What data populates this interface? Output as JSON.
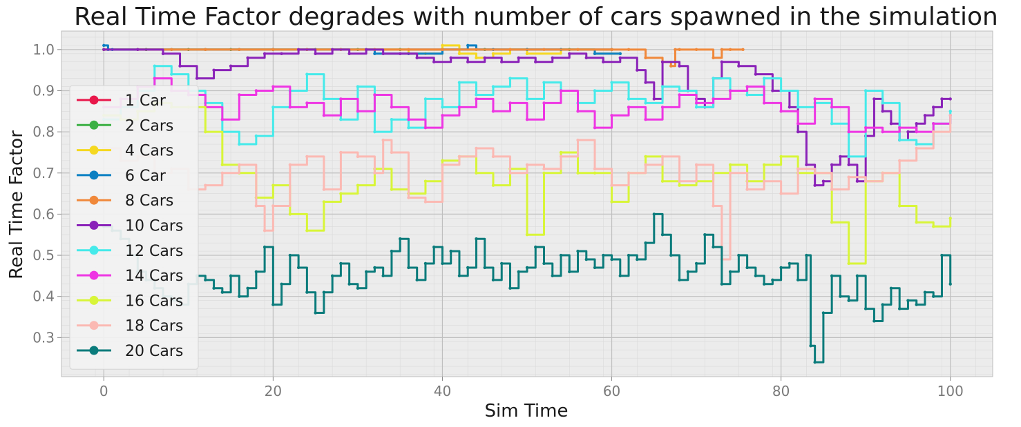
{
  "chart_data": {
    "type": "line",
    "title": "Real Time Factor degrades with number of cars spawned in the simulation",
    "xlabel": "Sim Time",
    "ylabel": "Real Time Factor",
    "xlim": [
      -5,
      105
    ],
    "ylim": [
      0.205,
      1.045
    ],
    "xticks": [
      0,
      20,
      40,
      60,
      80,
      100
    ],
    "xtick_labels": [
      "0",
      "20",
      "40",
      "60",
      "80",
      "100"
    ],
    "yticks": [
      0.3,
      0.4,
      0.5,
      0.6,
      0.7,
      0.8,
      0.9,
      1.0
    ],
    "ytick_labels": [
      "0.3",
      "0.4",
      "0.5",
      "0.6",
      "0.7",
      "0.8",
      "0.9",
      "1.0"
    ],
    "grid": true,
    "legend_position": "center-left",
    "series": [
      {
        "name": "1 Car",
        "color": "#e8174a",
        "x": [
          0,
          5,
          10,
          15,
          20,
          25,
          30,
          35,
          40,
          45,
          50,
          55,
          60
        ],
        "y": [
          1.0,
          1.0,
          1.0,
          1.0,
          1.0,
          1.0,
          1.0,
          1.0,
          1.0,
          1.0,
          1.0,
          1.0,
          1.0
        ]
      },
      {
        "name": "2 Cars",
        "color": "#3cb044",
        "x": [
          0,
          5,
          10,
          15,
          20,
          25,
          30,
          35,
          40,
          45,
          50,
          55,
          60
        ],
        "y": [
          1.0,
          1.0,
          1.0,
          1.0,
          1.0,
          1.0,
          1.0,
          1.0,
          1.0,
          1.0,
          1.0,
          1.0,
          1.0
        ]
      },
      {
        "name": "4 Cars",
        "color": "#f5d820",
        "x": [
          0,
          4,
          8,
          12,
          16,
          20,
          24,
          28,
          32,
          36,
          38,
          40,
          42,
          44,
          46,
          48,
          50,
          54,
          58,
          61
        ],
        "y": [
          1.0,
          1.0,
          1.0,
          1.0,
          1.0,
          1.0,
          1.0,
          1.0,
          1.0,
          0.99,
          0.99,
          1.01,
          0.99,
          0.98,
          0.99,
          1.0,
          0.99,
          1.0,
          0.99,
          0.99
        ]
      },
      {
        "name": "6 Car",
        "color": "#0a7fc2",
        "x": [
          0,
          0.5,
          1,
          4,
          8,
          12,
          16,
          20,
          24,
          28,
          32,
          36,
          40,
          43,
          44,
          46,
          50,
          54,
          58,
          61
        ],
        "y": [
          1.01,
          1.0,
          1.0,
          1.0,
          1.0,
          1.0,
          1.0,
          1.0,
          1.0,
          1.0,
          0.99,
          0.99,
          1.0,
          1.01,
          1.0,
          1.0,
          1.0,
          1.0,
          0.99,
          0.99
        ]
      },
      {
        "name": "8 Cars",
        "color": "#f0883a",
        "x": [
          4,
          8,
          12,
          16,
          20,
          24,
          28,
          32,
          36,
          40,
          44,
          48,
          52,
          56,
          60,
          62,
          64,
          66,
          67,
          67.5,
          68,
          70,
          72,
          73,
          74,
          75.5
        ],
        "y": [
          1.0,
          1.0,
          1.0,
          1.0,
          1.0,
          1.0,
          1.0,
          1.0,
          1.0,
          1.0,
          1.0,
          1.0,
          1.0,
          1.0,
          1.0,
          1.0,
          0.98,
          0.97,
          0.96,
          1.0,
          1.0,
          1.0,
          0.98,
          1.0,
          1.0,
          1.0
        ]
      },
      {
        "name": "10 Cars",
        "color": "#8a22b8",
        "x": [
          0,
          4,
          7,
          9,
          11,
          13,
          15,
          17,
          19,
          21,
          23,
          25,
          27,
          29,
          31,
          33,
          35,
          37,
          39,
          41,
          43,
          45,
          47,
          49,
          51,
          53,
          55,
          57,
          59,
          61,
          63,
          64,
          65,
          66,
          68,
          69,
          70,
          71,
          72,
          73,
          75,
          77,
          79,
          81,
          82,
          83,
          84,
          85,
          86,
          87,
          88,
          89,
          90,
          91,
          92,
          93,
          94,
          95,
          96,
          97,
          98,
          99,
          100
        ],
        "y": [
          1.0,
          1.0,
          0.99,
          0.96,
          0.93,
          0.95,
          0.96,
          0.98,
          0.99,
          0.99,
          1.0,
          0.99,
          1.0,
          0.99,
          1.0,
          0.99,
          0.99,
          0.98,
          0.97,
          0.98,
          0.97,
          0.98,
          0.97,
          0.98,
          0.97,
          0.98,
          0.99,
          0.98,
          0.97,
          0.98,
          0.95,
          0.92,
          0.88,
          0.97,
          0.96,
          0.9,
          0.88,
          0.86,
          0.93,
          0.97,
          0.96,
          0.94,
          0.9,
          0.86,
          0.8,
          0.72,
          0.67,
          0.68,
          0.72,
          0.74,
          0.72,
          0.68,
          0.79,
          0.88,
          0.85,
          0.82,
          0.78,
          0.8,
          0.82,
          0.84,
          0.86,
          0.88,
          0.88
        ]
      },
      {
        "name": "12 Cars",
        "color": "#45eaea",
        "x": [
          0,
          2,
          4,
          6,
          8,
          10,
          12,
          14,
          16,
          18,
          20,
          22,
          24,
          26,
          28,
          30,
          32,
          34,
          36,
          38,
          40,
          42,
          44,
          46,
          48,
          50,
          52,
          54,
          56,
          58,
          60,
          62,
          64,
          66,
          68,
          70,
          72,
          74,
          76,
          78,
          80,
          82,
          84,
          86,
          88,
          90,
          92,
          94,
          96,
          98,
          100
        ],
        "y": [
          0.83,
          0.86,
          0.9,
          0.96,
          0.94,
          0.9,
          0.87,
          0.8,
          0.77,
          0.79,
          0.86,
          0.9,
          0.94,
          0.88,
          0.83,
          0.91,
          0.8,
          0.83,
          0.81,
          0.88,
          0.86,
          0.92,
          0.89,
          0.91,
          0.93,
          0.88,
          0.92,
          0.9,
          0.87,
          0.9,
          0.92,
          0.88,
          0.87,
          0.91,
          0.9,
          0.86,
          0.93,
          0.9,
          0.89,
          0.93,
          0.9,
          0.86,
          0.87,
          0.82,
          0.74,
          0.9,
          0.87,
          0.78,
          0.77,
          0.82,
          0.85
        ]
      },
      {
        "name": "14 Cars",
        "color": "#ee35e3",
        "x": [
          0,
          2,
          4,
          6,
          8,
          10,
          12,
          14,
          16,
          18,
          20,
          22,
          24,
          26,
          28,
          30,
          32,
          34,
          36,
          38,
          40,
          42,
          44,
          46,
          48,
          50,
          52,
          54,
          56,
          58,
          60,
          62,
          64,
          66,
          68,
          70,
          72,
          74,
          76,
          78,
          80,
          82,
          84,
          86,
          88,
          90,
          92,
          94,
          96,
          98,
          100
        ],
        "y": [
          0.86,
          0.88,
          0.91,
          0.93,
          0.9,
          0.89,
          0.86,
          0.83,
          0.89,
          0.9,
          0.91,
          0.86,
          0.87,
          0.84,
          0.88,
          0.85,
          0.89,
          0.86,
          0.83,
          0.81,
          0.84,
          0.86,
          0.88,
          0.85,
          0.87,
          0.83,
          0.87,
          0.9,
          0.85,
          0.81,
          0.84,
          0.86,
          0.83,
          0.86,
          0.89,
          0.87,
          0.88,
          0.9,
          0.91,
          0.87,
          0.85,
          0.82,
          0.88,
          0.86,
          0.8,
          0.81,
          0.8,
          0.81,
          0.8,
          0.82,
          0.84
        ]
      },
      {
        "name": "16 Cars",
        "color": "#d8f538",
        "x": [
          0,
          2,
          4,
          6,
          8,
          10,
          12,
          14,
          16,
          18,
          20,
          22,
          24,
          26,
          28,
          30,
          32,
          34,
          36,
          38,
          40,
          42,
          44,
          46,
          48,
          50,
          52,
          54,
          56,
          58,
          60,
          62,
          64,
          66,
          68,
          70,
          72,
          74,
          76,
          78,
          80,
          82,
          84,
          86,
          88,
          90,
          92,
          94,
          96,
          98,
          100
        ],
        "y": [
          0.84,
          0.83,
          0.85,
          0.87,
          0.86,
          0.86,
          0.8,
          0.72,
          0.7,
          0.64,
          0.67,
          0.6,
          0.56,
          0.63,
          0.65,
          0.67,
          0.71,
          0.66,
          0.65,
          0.68,
          0.73,
          0.74,
          0.7,
          0.67,
          0.71,
          0.55,
          0.7,
          0.75,
          0.7,
          0.7,
          0.63,
          0.7,
          0.74,
          0.68,
          0.67,
          0.68,
          0.7,
          0.72,
          0.68,
          0.72,
          0.74,
          0.7,
          0.7,
          0.58,
          0.48,
          0.68,
          0.7,
          0.62,
          0.58,
          0.57,
          0.59
        ]
      },
      {
        "name": "18 Cars",
        "color": "#fbb9b3",
        "x": [
          0,
          2,
          4,
          6,
          8,
          10,
          12,
          14,
          16,
          18,
          19,
          20,
          22,
          24,
          26,
          28,
          30,
          32,
          33,
          34,
          36,
          38,
          40,
          42,
          44,
          46,
          48,
          50,
          52,
          54,
          56,
          58,
          60,
          62,
          64,
          66,
          68,
          70,
          72,
          73,
          74,
          76,
          78,
          80,
          82,
          84,
          86,
          88,
          90,
          92,
          94,
          96,
          98,
          100
        ],
        "y": [
          0.76,
          0.73,
          0.74,
          0.7,
          0.71,
          0.66,
          0.67,
          0.7,
          0.72,
          0.62,
          0.56,
          0.62,
          0.72,
          0.74,
          0.66,
          0.75,
          0.74,
          0.7,
          0.78,
          0.75,
          0.64,
          0.63,
          0.72,
          0.74,
          0.76,
          0.74,
          0.7,
          0.72,
          0.71,
          0.74,
          0.78,
          0.71,
          0.67,
          0.7,
          0.72,
          0.74,
          0.68,
          0.72,
          0.62,
          0.49,
          0.7,
          0.66,
          0.68,
          0.65,
          0.71,
          0.7,
          0.66,
          0.69,
          0.68,
          0.7,
          0.73,
          0.76,
          0.8,
          0.84
        ]
      },
      {
        "name": "20 Cars",
        "color": "#0a7b7b",
        "x": [
          0,
          1,
          2,
          3,
          4,
          5,
          6,
          7,
          8,
          9,
          10,
          11,
          12,
          13,
          14,
          15,
          16,
          17,
          18,
          19,
          20,
          21,
          22,
          23,
          24,
          25,
          26,
          27,
          28,
          29,
          30,
          31,
          32,
          33,
          34,
          35,
          36,
          37,
          38,
          39,
          40,
          41,
          42,
          43,
          44,
          45,
          46,
          47,
          48,
          49,
          50,
          51,
          52,
          53,
          54,
          55,
          56,
          57,
          58,
          59,
          60,
          61,
          62,
          63,
          64,
          65,
          66,
          67,
          68,
          69,
          70,
          71,
          72,
          73,
          74,
          75,
          76,
          77,
          78,
          79,
          80,
          81,
          82,
          83,
          83.5,
          84,
          85,
          86,
          87,
          88,
          89,
          90,
          91,
          92,
          93,
          94,
          95,
          96,
          97,
          98,
          99,
          100
        ],
        "y": [
          0.57,
          0.56,
          0.54,
          0.5,
          0.46,
          0.44,
          0.42,
          0.4,
          0.39,
          0.38,
          0.43,
          0.45,
          0.44,
          0.42,
          0.41,
          0.45,
          0.4,
          0.42,
          0.46,
          0.52,
          0.38,
          0.43,
          0.5,
          0.47,
          0.41,
          0.36,
          0.41,
          0.45,
          0.48,
          0.43,
          0.42,
          0.46,
          0.47,
          0.45,
          0.51,
          0.54,
          0.47,
          0.44,
          0.48,
          0.52,
          0.48,
          0.51,
          0.45,
          0.47,
          0.54,
          0.47,
          0.44,
          0.48,
          0.42,
          0.46,
          0.47,
          0.52,
          0.48,
          0.45,
          0.5,
          0.46,
          0.51,
          0.49,
          0.47,
          0.5,
          0.49,
          0.45,
          0.5,
          0.49,
          0.53,
          0.6,
          0.55,
          0.5,
          0.44,
          0.46,
          0.48,
          0.55,
          0.52,
          0.43,
          0.46,
          0.5,
          0.47,
          0.45,
          0.43,
          0.44,
          0.47,
          0.48,
          0.44,
          0.5,
          0.28,
          0.24,
          0.36,
          0.45,
          0.4,
          0.39,
          0.45,
          0.37,
          0.34,
          0.38,
          0.42,
          0.37,
          0.39,
          0.38,
          0.41,
          0.4,
          0.5,
          0.43
        ]
      }
    ]
  }
}
